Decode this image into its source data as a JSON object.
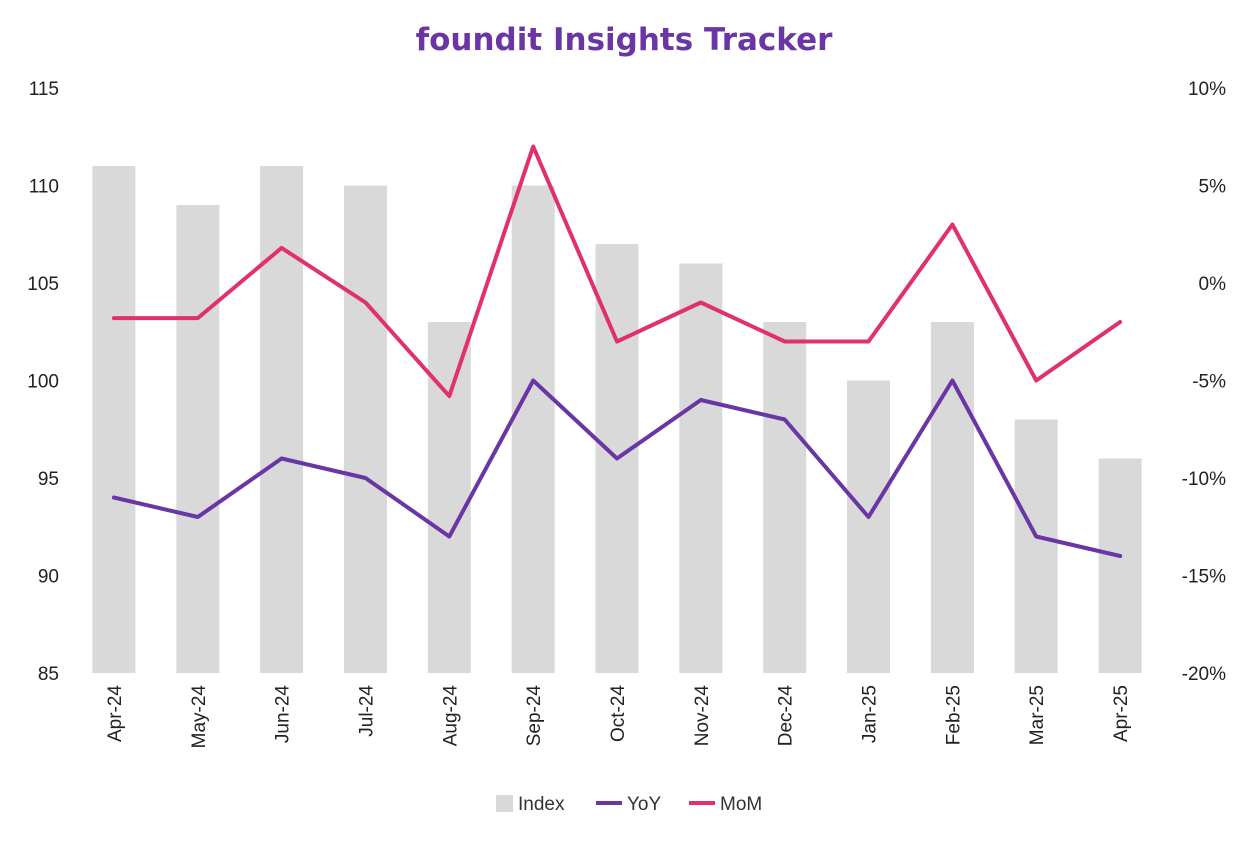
{
  "chart_data": {
    "type": "bar",
    "title": "foundit Insights Tracker",
    "categories": [
      "Apr-24",
      "May-24",
      "Jun-24",
      "Jul-24",
      "Aug-24",
      "Sep-24",
      "Oct-24",
      "Nov-24",
      "Dec-24",
      "Jan-25",
      "Feb-25",
      "Mar-25",
      "Apr-25"
    ],
    "series": [
      {
        "name": "Index",
        "type": "bar",
        "axis": "left",
        "color": "#d9d9d9",
        "values": [
          111,
          109,
          111,
          110,
          103,
          110,
          107,
          106,
          103,
          100,
          103,
          98,
          96
        ]
      },
      {
        "name": "YoY",
        "type": "line",
        "axis": "right",
        "color": "#6a35a5",
        "values": [
          -11,
          -12,
          -9,
          -10,
          -13,
          -5,
          -9,
          -6,
          -7,
          -12,
          -5,
          -13,
          -14
        ]
      },
      {
        "name": "MoM",
        "type": "line",
        "axis": "right",
        "color": "#e0306e",
        "values": [
          -1.8,
          -1.8,
          1.8,
          -1,
          -5.8,
          7,
          -3,
          -1,
          -3,
          -3,
          3,
          -5,
          -2
        ]
      }
    ],
    "y_left": {
      "min": 85,
      "max": 115,
      "step": 5,
      "ticks": [
        "85",
        "90",
        "95",
        "100",
        "105",
        "110",
        "115"
      ]
    },
    "y_right": {
      "min": -20,
      "max": 10,
      "step": 5,
      "ticks": [
        "-20%",
        "-15%",
        "-10%",
        "-5%",
        "0%",
        "5%",
        "10%"
      ]
    },
    "grid": false,
    "legend_position": "bottom"
  }
}
